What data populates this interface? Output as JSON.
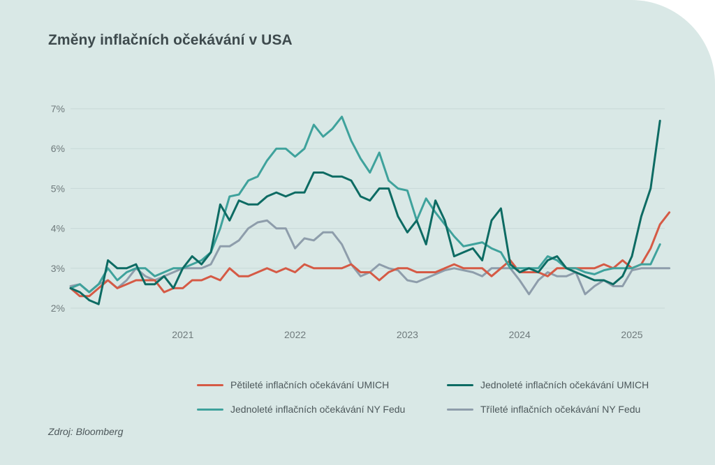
{
  "title": "Změny inflačních očekávání v USA",
  "source": "Zdroj: Bloomberg",
  "colors": {
    "umich5": "#d55a45",
    "umich1": "#0d6b63",
    "ny1": "#3fa29c",
    "ny3": "#8e9dab",
    "grid": "#c8d9d7",
    "background": "#d9e8e6"
  },
  "legend": [
    {
      "key": "umich5",
      "label": "Pětileté inflačních očekávání UMICH"
    },
    {
      "key": "umich1",
      "label": "Jednoleté inflačních očekávání UMICH"
    },
    {
      "key": "ny1",
      "label": "Jednoleté inflačních očekávání NY Fedu"
    },
    {
      "key": "ny3",
      "label": "Tříleté inflačních očekávání NY Fedu"
    }
  ],
  "chart_data": {
    "type": "line",
    "x_start": "2020-01",
    "x_frequency": "monthly",
    "x_ticks": [
      {
        "label": "2021",
        "date": "2021-01"
      },
      {
        "label": "2022",
        "date": "2022-01"
      },
      {
        "label": "2023",
        "date": "2023-01"
      },
      {
        "label": "2024",
        "date": "2024-01"
      },
      {
        "label": "2025",
        "date": "2025-01"
      }
    ],
    "y_ticks": [
      "2%",
      "3%",
      "4%",
      "5%",
      "6%",
      "7%"
    ],
    "ylim": [
      2,
      7
    ],
    "y_unit": "%",
    "grid": true,
    "legend_position": "bottom",
    "series": [
      {
        "key": "umich5",
        "name": "Pětileté inflačních očekávání UMICH",
        "values": [
          2.5,
          2.3,
          2.3,
          2.5,
          2.7,
          2.5,
          2.6,
          2.7,
          2.7,
          2.7,
          2.4,
          2.5,
          2.5,
          2.7,
          2.7,
          2.8,
          2.7,
          3.0,
          2.8,
          2.8,
          2.9,
          3.0,
          2.9,
          3.0,
          2.9,
          3.1,
          3.0,
          3.0,
          3.0,
          3.0,
          3.1,
          2.9,
          2.9,
          2.7,
          2.9,
          3.0,
          3.0,
          2.9,
          2.9,
          2.9,
          3.0,
          3.1,
          3.0,
          3.0,
          3.0,
          2.8,
          3.0,
          3.2,
          2.9,
          2.9,
          2.9,
          2.8,
          3.0,
          3.0,
          3.0,
          3.0,
          3.0,
          3.1,
          3.0,
          3.2,
          3.0,
          3.1,
          3.5,
          4.1,
          4.4
        ]
      },
      {
        "key": "umich1",
        "name": "Jednoleté inflačních očekávání UMICH",
        "values": [
          2.5,
          2.4,
          2.2,
          2.1,
          3.2,
          3.0,
          3.0,
          3.1,
          2.6,
          2.6,
          2.8,
          2.5,
          3.0,
          3.3,
          3.1,
          3.4,
          4.6,
          4.2,
          4.7,
          4.6,
          4.6,
          4.8,
          4.9,
          4.8,
          4.9,
          4.9,
          5.4,
          5.4,
          5.3,
          5.3,
          5.2,
          4.8,
          4.7,
          5.0,
          5.0,
          4.3,
          3.9,
          4.2,
          3.6,
          4.7,
          4.2,
          3.3,
          3.4,
          3.5,
          3.2,
          4.2,
          4.5,
          3.1,
          2.9,
          3.0,
          2.9,
          3.2,
          3.3,
          3.0,
          2.9,
          2.8,
          2.7,
          2.7,
          2.6,
          2.8,
          3.3,
          4.3,
          5.0,
          6.7
        ]
      },
      {
        "key": "ny1",
        "name": "Jednoleté inflačních očekávání NY Fedu",
        "values": [
          2.5,
          2.6,
          2.4,
          2.6,
          3.0,
          2.7,
          2.9,
          3.0,
          3.0,
          2.8,
          2.9,
          3.0,
          3.0,
          3.1,
          3.2,
          3.4,
          4.0,
          4.8,
          4.85,
          5.2,
          5.3,
          5.7,
          6.0,
          6.0,
          5.8,
          6.0,
          6.6,
          6.3,
          6.5,
          6.8,
          6.2,
          5.75,
          5.4,
          5.9,
          5.2,
          5.0,
          4.95,
          4.2,
          4.75,
          4.4,
          4.1,
          3.8,
          3.55,
          3.6,
          3.65,
          3.5,
          3.4,
          3.0,
          3.0,
          3.0,
          3.0,
          3.3,
          3.2,
          3.0,
          3.0,
          2.9,
          2.85,
          2.95,
          3.0,
          3.0,
          3.0,
          3.1,
          3.1,
          3.6
        ]
      },
      {
        "key": "ny3",
        "name": "Tříleté inflačních očekávání NY Fedu",
        "values": [
          2.55,
          2.6,
          2.4,
          2.6,
          2.7,
          2.5,
          2.7,
          3.0,
          2.8,
          2.7,
          2.8,
          2.9,
          3.0,
          3.0,
          3.0,
          3.1,
          3.55,
          3.55,
          3.7,
          4.0,
          4.15,
          4.2,
          4.0,
          4.0,
          3.5,
          3.75,
          3.7,
          3.9,
          3.9,
          3.6,
          3.1,
          2.8,
          2.9,
          3.1,
          3.0,
          2.95,
          2.7,
          2.65,
          2.75,
          2.85,
          2.95,
          3.0,
          2.95,
          2.9,
          2.8,
          3.0,
          3.0,
          3.0,
          2.7,
          2.35,
          2.7,
          2.9,
          2.8,
          2.8,
          2.9,
          2.35,
          2.55,
          2.7,
          2.55,
          2.55,
          2.95,
          3.0,
          3.0,
          3.0,
          3.0
        ]
      }
    ]
  }
}
